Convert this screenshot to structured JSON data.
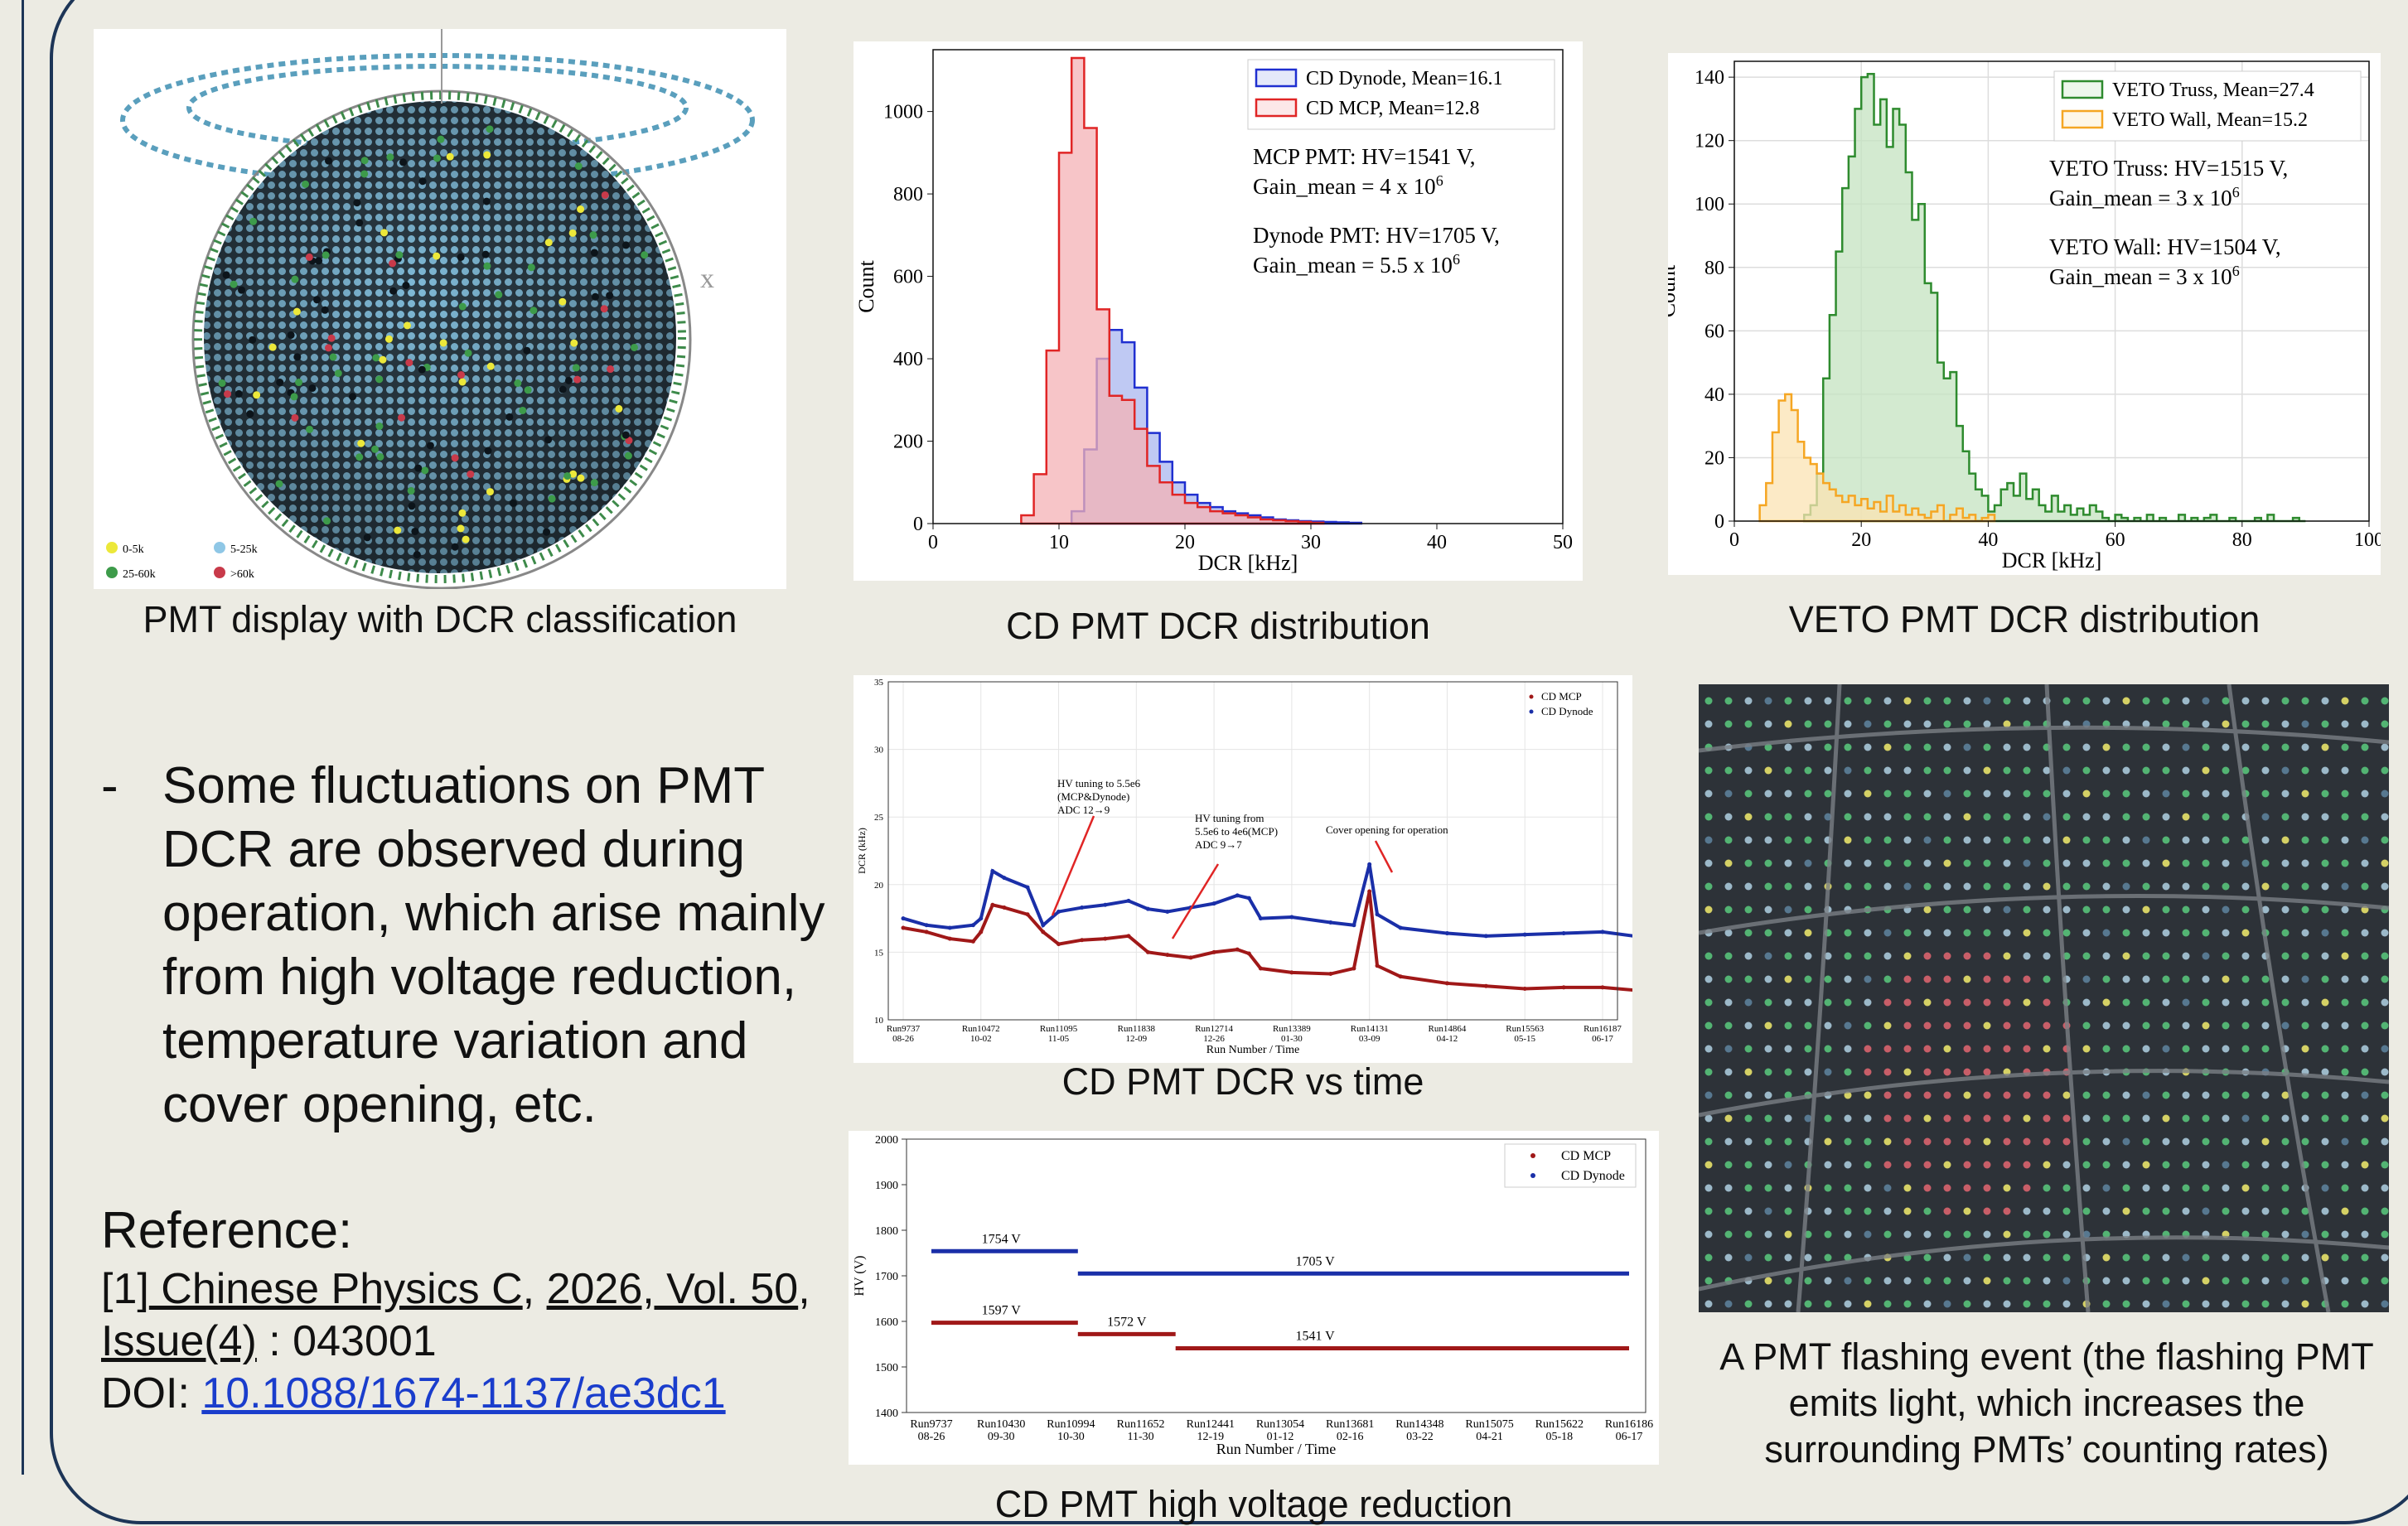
{
  "captions": {
    "pmt_display": "PMT display with DCR classification",
    "cd_dcr": "CD PMT DCR distribution",
    "veto_dcr": "VETO PMT DCR distribution",
    "dcr_time": "CD PMT DCR vs time",
    "hv_reduction": "CD PMT high voltage reduction",
    "flash": "A PMT flashing event (the flashing PMT emits light, which increases the surrounding PMTs’ counting rates)"
  },
  "sphere": {
    "axis_mark": "x",
    "legend": [
      {
        "label": "0-5k",
        "color": "#ece83a"
      },
      {
        "label": "5-25k",
        "color": "#8fc7e6"
      },
      {
        "label": "25-60k",
        "color": "#3d9b4a"
      },
      {
        "label": ">60k",
        "color": "#c83a4a"
      }
    ]
  },
  "bullet": {
    "dash": "-",
    "text": "Some fluctuations on PMT DCR are observed during operation, which arise mainly from high voltage reduction, temperature variation and cover opening, etc."
  },
  "reference": {
    "title": "Reference:",
    "prefix": "[1]",
    "journal": " Chinese Physics C",
    "sep1": ", ",
    "year_vol": "2026, Vol. 50",
    "sep2": ", ",
    "issue": "Issue(4)",
    "article": " : 043001",
    "doi_label": "DOI: ",
    "doi": "10.1088/1674-1137/ae3dc1"
  },
  "chart_data": [
    {
      "id": "cd_dcr",
      "type": "histogram",
      "xlabel": "DCR [kHz]",
      "ylabel": "Count",
      "xlim": [
        0,
        50
      ],
      "ylim": [
        0,
        1150
      ],
      "xticks": [
        0,
        10,
        20,
        30,
        40,
        50
      ],
      "yticks": [
        0,
        200,
        400,
        600,
        800,
        1000
      ],
      "bin_width": 1,
      "legend_position": "top-right",
      "series": [
        {
          "name": "CD Dynode, Mean=16.1",
          "color": "#1f2fd0",
          "fill": "#a9b7ef",
          "x": [
            11,
            12,
            13,
            14,
            15,
            16,
            17,
            18,
            19,
            20,
            21,
            22,
            23,
            24,
            25,
            26,
            27,
            28,
            29,
            30,
            31,
            32,
            33
          ],
          "values": [
            30,
            180,
            400,
            470,
            440,
            330,
            220,
            150,
            100,
            70,
            50,
            40,
            30,
            25,
            20,
            15,
            10,
            8,
            6,
            5,
            4,
            3,
            2
          ]
        },
        {
          "name": "CD MCP, Mean=12.8",
          "color": "#e02525",
          "fill": "#f4b2b6",
          "x": [
            7,
            8,
            9,
            10,
            11,
            12,
            13,
            14,
            15,
            16,
            17,
            18,
            19,
            20,
            21,
            22,
            23,
            24,
            25,
            26,
            27,
            28,
            29,
            30
          ],
          "values": [
            20,
            120,
            420,
            900,
            1130,
            960,
            520,
            310,
            300,
            230,
            140,
            100,
            70,
            50,
            40,
            30,
            25,
            20,
            15,
            10,
            8,
            6,
            4,
            2
          ]
        }
      ],
      "annotations": [
        {
          "line1": "MCP PMT: HV=1541 V,",
          "line2": "Gain_mean = 4 x 10",
          "sup": "6"
        },
        {
          "line1": "Dynode PMT: HV=1705 V,",
          "line2": "Gain_mean = 5.5 x 10",
          "sup": "6"
        }
      ]
    },
    {
      "id": "veto_dcr",
      "type": "histogram",
      "xlabel": "DCR [kHz]",
      "ylabel": "Count",
      "xlim": [
        0,
        100
      ],
      "ylim": [
        0,
        145
      ],
      "xticks": [
        0,
        20,
        40,
        60,
        80,
        100
      ],
      "yticks": [
        0,
        20,
        40,
        60,
        80,
        100,
        120,
        140
      ],
      "grid": true,
      "bin_width": 1,
      "legend_position": "top-right",
      "series": [
        {
          "name": "VETO Truss, Mean=27.4",
          "color": "#2e8b2e",
          "fill": "#c4e3c0",
          "x": [
            11,
            12,
            13,
            14,
            15,
            16,
            17,
            18,
            19,
            20,
            21,
            22,
            23,
            24,
            25,
            26,
            27,
            28,
            29,
            30,
            31,
            32,
            33,
            34,
            35,
            36,
            37,
            38,
            39,
            40,
            41,
            42,
            43,
            44,
            45,
            46,
            47,
            48,
            49,
            50,
            51,
            52,
            53,
            54,
            55,
            56,
            57,
            58,
            59,
            60,
            61,
            62,
            63,
            64,
            65,
            66,
            67,
            68,
            69,
            70,
            71,
            72,
            73,
            74,
            75,
            76,
            77,
            78,
            79,
            80,
            81,
            82,
            83,
            84,
            85,
            86,
            87,
            88,
            89
          ],
          "values": [
            2,
            5,
            15,
            45,
            65,
            85,
            105,
            115,
            130,
            140,
            141,
            125,
            133,
            118,
            130,
            125,
            110,
            95,
            100,
            75,
            72,
            50,
            45,
            47,
            30,
            22,
            15,
            10,
            8,
            3,
            5,
            10,
            12,
            8,
            15,
            7,
            10,
            5,
            3,
            8,
            3,
            5,
            2,
            4,
            2,
            5,
            3,
            1,
            0,
            2,
            1,
            0,
            1,
            0,
            2,
            0,
            1,
            0,
            0,
            2,
            0,
            1,
            0,
            1,
            2,
            0,
            0,
            1,
            0,
            0,
            0,
            1,
            0,
            2,
            0,
            0,
            0,
            1,
            0
          ]
        },
        {
          "name": "VETO Wall, Mean=15.2",
          "color": "#f5a623",
          "fill": "#fbe3b3",
          "x": [
            4,
            5,
            6,
            7,
            8,
            9,
            10,
            11,
            12,
            13,
            14,
            15,
            16,
            17,
            18,
            19,
            20,
            21,
            22,
            23,
            24,
            25,
            26,
            27,
            28,
            29,
            30,
            31,
            32,
            33,
            34,
            35,
            36,
            37,
            38,
            39,
            40
          ],
          "values": [
            5,
            12,
            28,
            38,
            40,
            35,
            25,
            20,
            18,
            15,
            12,
            10,
            8,
            6,
            8,
            5,
            7,
            4,
            6,
            3,
            8,
            3,
            5,
            2,
            4,
            2,
            1,
            3,
            5,
            0,
            2,
            4,
            1,
            2,
            0,
            1,
            2
          ]
        }
      ],
      "annotations": [
        {
          "line1": "VETO Truss: HV=1515 V,",
          "line2": "Gain_mean = 3 x 10",
          "sup": "6"
        },
        {
          "line1": "VETO Wall: HV=1504 V,",
          "line2": "Gain_mean = 3 x 10",
          "sup": "6"
        }
      ]
    },
    {
      "id": "dcr_time",
      "type": "scatter",
      "xlabel": "Run Number / Time",
      "ylabel": "DCR (kHz)",
      "ylim": [
        10,
        35
      ],
      "yticks": [
        10,
        15,
        20,
        25,
        30,
        35
      ],
      "grid": true,
      "legend_position": "top-right",
      "categories": [
        "Run9737\n08-26",
        "Run10472\n10-02",
        "Run11095\n11-05",
        "Run11838\n12-09",
        "Run12714\n12-26",
        "Run13389\n01-30",
        "Run14131\n03-09",
        "Run14864\n04-12",
        "Run15563\n05-15",
        "Run16187\n06-17"
      ],
      "series": [
        {
          "name": "CD MCP",
          "color": "#a01818",
          "x": [
            0,
            0.3,
            0.6,
            0.9,
            1.0,
            1.15,
            1.3,
            1.6,
            1.8,
            2.0,
            2.3,
            2.6,
            2.9,
            3.15,
            3.4,
            3.7,
            4.0,
            4.3,
            4.45,
            4.6,
            5.0,
            5.5,
            5.8,
            6.0,
            6.1,
            6.4,
            7.0,
            7.5,
            8.0,
            8.5,
            9.0,
            9.4
          ],
          "values": [
            16.8,
            16.5,
            16.0,
            15.8,
            16.5,
            18.5,
            18.3,
            17.8,
            16.5,
            15.6,
            15.9,
            16.0,
            16.2,
            15.0,
            14.8,
            14.6,
            15.0,
            15.2,
            14.9,
            13.8,
            13.5,
            13.4,
            13.8,
            19.5,
            14.0,
            13.2,
            12.7,
            12.5,
            12.3,
            12.4,
            12.4,
            12.2
          ]
        },
        {
          "name": "CD Dynode",
          "color": "#1a2fa8",
          "x": [
            0,
            0.3,
            0.6,
            0.9,
            1.0,
            1.15,
            1.3,
            1.6,
            1.8,
            2.0,
            2.3,
            2.6,
            2.9,
            3.15,
            3.4,
            3.7,
            4.0,
            4.3,
            4.45,
            4.6,
            5.0,
            5.5,
            5.8,
            6.0,
            6.1,
            6.4,
            7.0,
            7.5,
            8.0,
            8.5,
            9.0,
            9.4
          ],
          "values": [
            17.5,
            17.0,
            16.8,
            17.0,
            17.5,
            21.0,
            20.5,
            19.8,
            17.0,
            18.0,
            18.3,
            18.5,
            18.8,
            18.2,
            18.0,
            18.3,
            18.6,
            19.2,
            19.0,
            17.5,
            17.6,
            17.2,
            17.0,
            21.5,
            17.8,
            16.8,
            16.4,
            16.2,
            16.3,
            16.4,
            16.5,
            16.2
          ]
        }
      ],
      "annotations": [
        {
          "lines": [
            "HV tuning to 5.5e6",
            "(MCP&Dynode)",
            "ADC 12→9"
          ]
        },
        {
          "lines": [
            "HV tuning from",
            "5.5e6 to 4e6(MCP)",
            "ADC 9→7"
          ]
        },
        {
          "lines": [
            "Cover opening for operation"
          ]
        }
      ]
    },
    {
      "id": "hv_reduction",
      "type": "line",
      "xlabel": "Run Number / Time",
      "ylabel": "HV (V)",
      "ylim": [
        1400,
        2000
      ],
      "yticks": [
        1400,
        1500,
        1600,
        1700,
        1800,
        1900,
        2000
      ],
      "legend_position": "top-right",
      "categories": [
        "Run9737\n08-26",
        "Run10430\n09-30",
        "Run10994\n10-30",
        "Run11652\n11-30",
        "Run12441\n12-19",
        "Run13054\n01-12",
        "Run13681\n02-16",
        "Run14348\n03-22",
        "Run15075\n04-21",
        "Run15622\n05-18",
        "Run16186\n06-17"
      ],
      "series": [
        {
          "name": "CD MCP",
          "color": "#a01818",
          "segments": [
            [
              0,
              2.1,
              1597
            ],
            [
              2.1,
              3.5,
              1572
            ],
            [
              3.5,
              10,
              1541
            ]
          ]
        },
        {
          "name": "CD Dynode",
          "color": "#1a2fa8",
          "segments": [
            [
              0,
              2.1,
              1754
            ],
            [
              2.1,
              10,
              1705
            ]
          ]
        }
      ],
      "labels": [
        "1754 V",
        "1705 V",
        "1597 V",
        "1572 V",
        "1541 V"
      ]
    }
  ],
  "colors": {
    "frame": "#1d3557",
    "background": "#ecebe3",
    "link": "#1a3dcc"
  }
}
